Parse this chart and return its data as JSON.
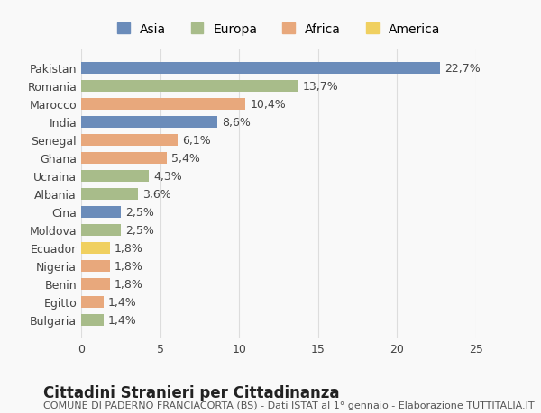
{
  "countries": [
    "Pakistan",
    "Romania",
    "Marocco",
    "India",
    "Senegal",
    "Ghana",
    "Ucraina",
    "Albania",
    "Cina",
    "Moldova",
    "Ecuador",
    "Nigeria",
    "Benin",
    "Egitto",
    "Bulgaria"
  ],
  "values": [
    22.7,
    13.7,
    10.4,
    8.6,
    6.1,
    5.4,
    4.3,
    3.6,
    2.5,
    2.5,
    1.8,
    1.8,
    1.8,
    1.4,
    1.4
  ],
  "labels": [
    "22,7%",
    "13,7%",
    "10,4%",
    "8,6%",
    "6,1%",
    "5,4%",
    "4,3%",
    "3,6%",
    "2,5%",
    "2,5%",
    "1,8%",
    "1,8%",
    "1,8%",
    "1,4%",
    "1,4%"
  ],
  "continents": [
    "Asia",
    "Europa",
    "Africa",
    "Asia",
    "Africa",
    "Africa",
    "Europa",
    "Europa",
    "Asia",
    "Europa",
    "America",
    "Africa",
    "Africa",
    "Africa",
    "Europa"
  ],
  "continent_colors": {
    "Asia": "#6b8cba",
    "Europa": "#a8bc8a",
    "Africa": "#e8a87c",
    "America": "#f0d060"
  },
  "legend_order": [
    "Asia",
    "Europa",
    "Africa",
    "America"
  ],
  "xlim": [
    0,
    25
  ],
  "xticks": [
    0,
    5,
    10,
    15,
    20,
    25
  ],
  "title": "Cittadini Stranieri per Cittadinanza",
  "subtitle": "COMUNE DI PADERNO FRANCIACORTA (BS) - Dati ISTAT al 1° gennaio - Elaborazione TUTTITALIA.IT",
  "background_color": "#f9f9f9",
  "grid_color": "#dddddd",
  "bar_height": 0.65,
  "label_fontsize": 9,
  "ytick_fontsize": 9,
  "xtick_fontsize": 9,
  "title_fontsize": 12,
  "subtitle_fontsize": 8
}
